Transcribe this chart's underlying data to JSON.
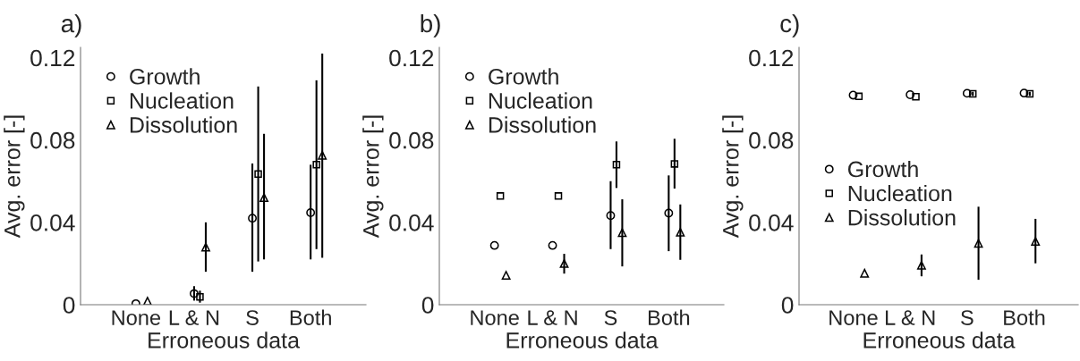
{
  "chart_data": [
    {
      "type": "scatter",
      "title": "a)",
      "xlabel": "Erroneous data",
      "ylabel": "Avg. error [-]",
      "categories": [
        "None",
        "L & N",
        "S",
        "Both"
      ],
      "ylim": [
        0,
        0.125
      ],
      "yticks": [
        0,
        0.04,
        0.08,
        0.12
      ],
      "legend": "top left",
      "grid": false,
      "series": [
        {
          "name": "Growth",
          "color": "#000000",
          "marker": "circle",
          "values": [
            0.0005,
            0.0054,
            0.042,
            0.0447
          ],
          "errors": [
            null,
            [
              0.002,
              0.009
            ],
            [
              0.016,
              0.0686
            ],
            [
              0.022,
              0.068
            ]
          ]
        },
        {
          "name": "Nucleation",
          "color": "#000000",
          "marker": "square",
          "values": [
            null,
            0.0038,
            0.0635,
            0.068
          ],
          "errors": [
            null,
            [
              0.001,
              0.0068
            ],
            [
              0.021,
              0.106
            ],
            [
              0.027,
              0.109
            ]
          ]
        },
        {
          "name": "Dissolution",
          "color": "#000000",
          "marker": "triangle",
          "values": [
            0.0017,
            0.028,
            0.052,
            0.0726
          ],
          "errors": [
            null,
            [
              0.016,
              0.04
            ],
            [
              0.022,
              0.083
            ],
            [
              0.0228,
              0.122
            ]
          ]
        }
      ]
    },
    {
      "type": "scatter",
      "title": "b)",
      "xlabel": "Erroneous data",
      "ylabel": "Avg. error [-]",
      "categories": [
        "None",
        "L & N",
        "S",
        "Both"
      ],
      "ylim": [
        0,
        0.125
      ],
      "yticks": [
        0,
        0.04,
        0.08,
        0.12
      ],
      "legend": "top left",
      "grid": false,
      "series": [
        {
          "name": "Growth",
          "color": "#000000",
          "marker": "circle",
          "values": [
            0.0288,
            0.0288,
            0.0433,
            0.0445
          ],
          "errors": [
            null,
            null,
            [
              0.027,
              0.06
            ],
            [
              0.026,
              0.0628
            ]
          ]
        },
        {
          "name": "Nucleation",
          "color": "#000000",
          "marker": "square",
          "values": [
            0.0528,
            0.0528,
            0.068,
            0.0684
          ],
          "errors": [
            null,
            null,
            [
              0.0567,
              0.0793
            ],
            [
              0.0564,
              0.0806
            ]
          ]
        },
        {
          "name": "Dissolution",
          "color": "#000000",
          "marker": "triangle",
          "values": [
            0.0143,
            0.02,
            0.035,
            0.0352
          ],
          "errors": [
            null,
            [
              0.0151,
              0.0247
            ],
            [
              0.0186,
              0.0512
            ],
            [
              0.0218,
              0.0487
            ]
          ]
        }
      ]
    },
    {
      "type": "scatter",
      "title": "c)",
      "xlabel": "Erroneous data",
      "ylabel": "Avg. error [-]",
      "categories": [
        "None",
        "L & N",
        "S",
        "Both"
      ],
      "ylim": [
        0,
        0.125
      ],
      "yticks": [
        0,
        0.04,
        0.08,
        0.12
      ],
      "legend": "left",
      "grid": false,
      "series": [
        {
          "name": "Growth",
          "color": "#000000",
          "marker": "circle",
          "values": [
            0.1018,
            0.102,
            0.1027,
            0.1028
          ]
        },
        {
          "name": "Nucleation",
          "color": "#000000",
          "marker": "square",
          "values": [
            0.1012,
            0.101,
            0.1024,
            0.1024
          ],
          "errors": [
            null,
            null,
            [
              0.1014,
              0.1034
            ],
            [
              0.1014,
              0.1034
            ]
          ]
        },
        {
          "name": "Dissolution",
          "color": "#000000",
          "marker": "triangle",
          "values": [
            0.0153,
            0.0192,
            0.0298,
            0.0308
          ],
          "errors": [
            null,
            [
              0.0138,
              0.0244
            ],
            [
              0.0121,
              0.0476
            ],
            [
              0.0201,
              0.0417
            ]
          ]
        }
      ]
    }
  ]
}
